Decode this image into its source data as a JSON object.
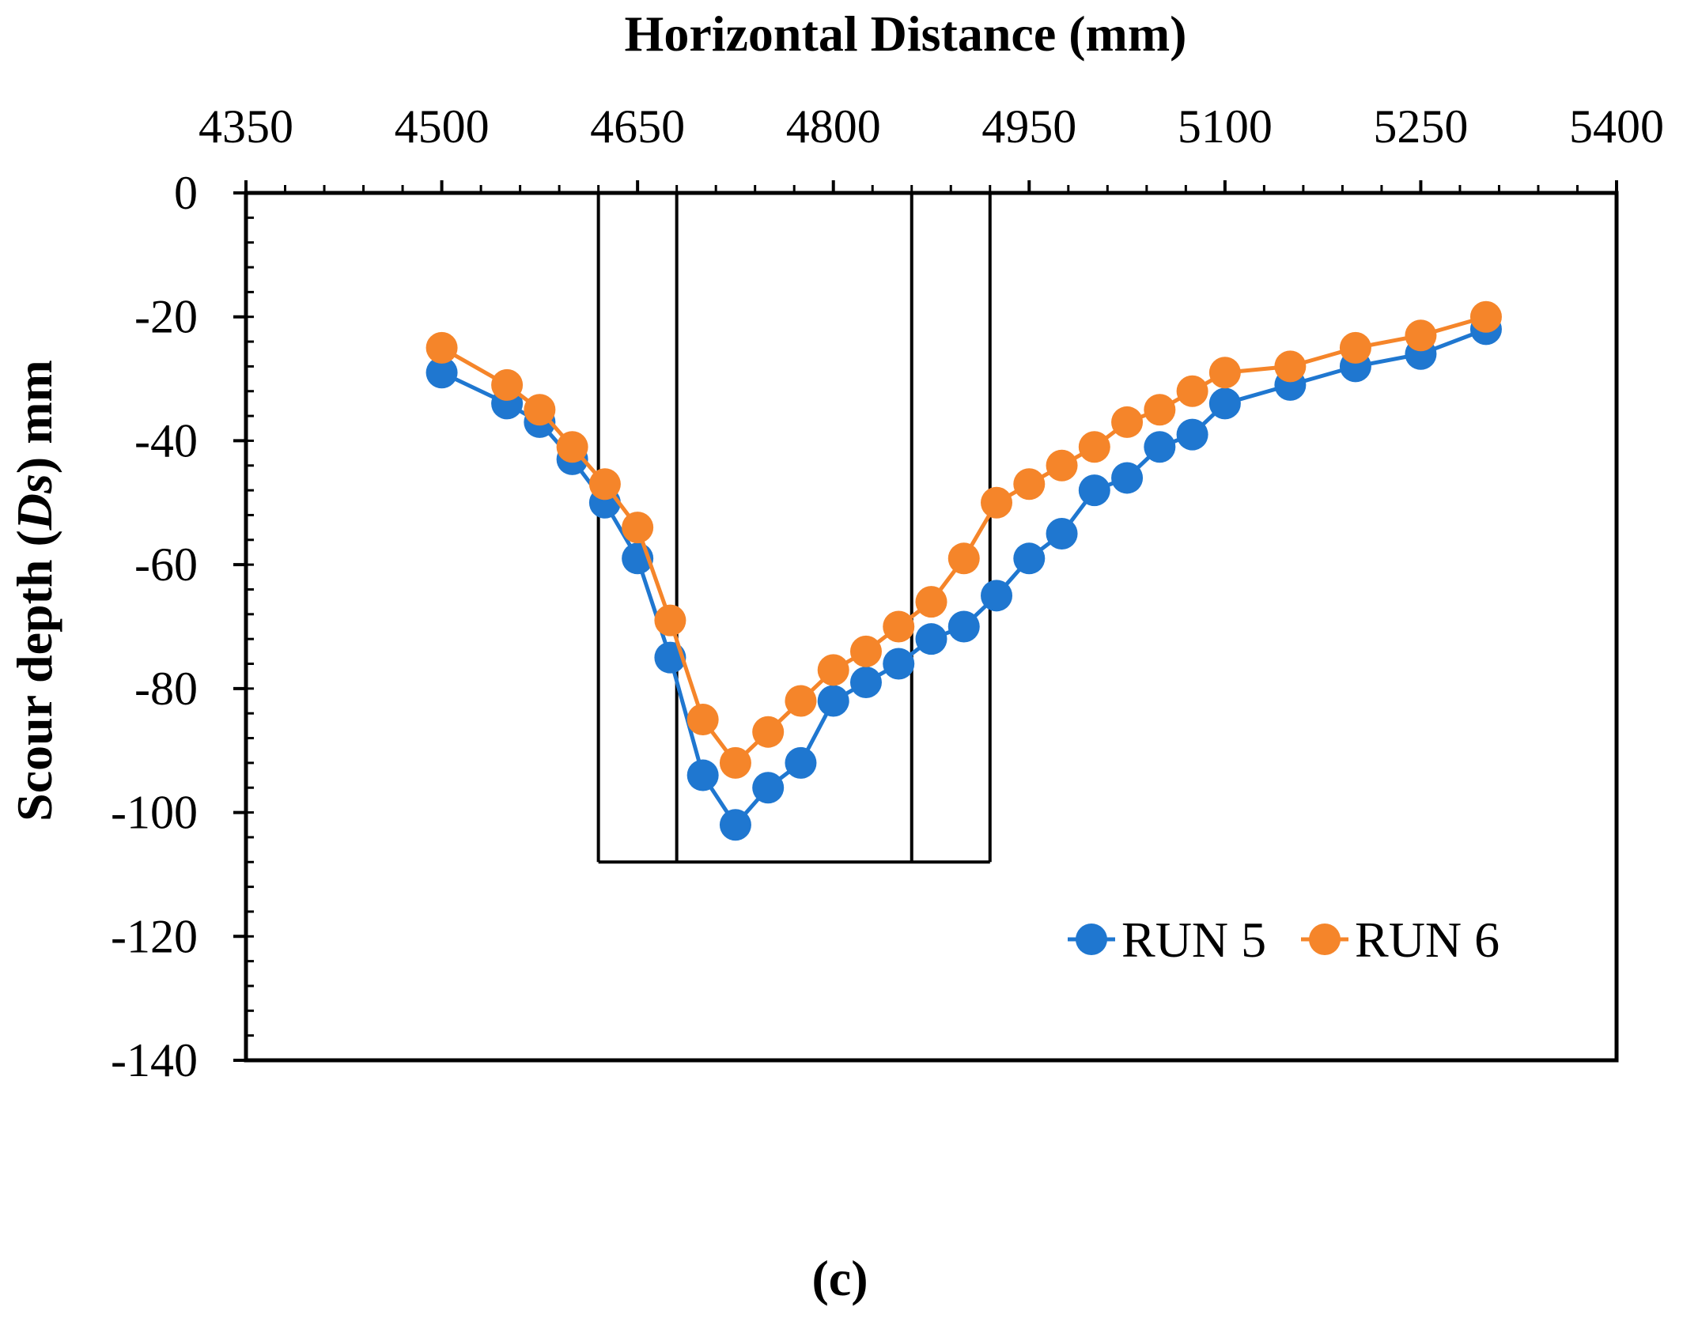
{
  "chart_data": {
    "type": "line",
    "title": "",
    "xlabel": "Horizontal Distance (mm)",
    "ylabel_prefix": "Scour depth (",
    "ylabel_italic": "Ds",
    "ylabel_suffix": ") mm",
    "xlim": [
      4350,
      5400
    ],
    "ylim": [
      -140,
      0
    ],
    "x_ticks": [
      4350,
      4500,
      4650,
      4800,
      4950,
      5100,
      5250,
      5400
    ],
    "x_tick_labels": [
      "4350",
      "4500",
      "4650",
      "4800",
      "4950",
      "5100",
      "5250",
      "5400"
    ],
    "y_ticks": [
      0,
      -20,
      -40,
      -60,
      -80,
      -100,
      -120,
      -140
    ],
    "y_tick_labels": [
      "0",
      "-20",
      "-40",
      "-60",
      "-80",
      "-100",
      "-120",
      "-140"
    ],
    "x_minor_step": 30,
    "y_minor_step": 4,
    "x_axis_position": "top",
    "grid": false,
    "legend_position": "bottom-right",
    "series": [
      {
        "name": "RUN 5",
        "color": "#1f77d0",
        "x": [
          4500,
          4550,
          4575,
          4600,
          4625,
          4650,
          4675,
          4700,
          4725,
          4750,
          4775,
          4800,
          4825,
          4850,
          4875,
          4900,
          4925,
          4950,
          4975,
          5000,
          5025,
          5050,
          5075,
          5100,
          5150,
          5200,
          5250,
          5300
        ],
        "y": [
          -29,
          -34,
          -37,
          -43,
          -50,
          -59,
          -75,
          -94,
          -102,
          -96,
          -92,
          -82,
          -79,
          -76,
          -72,
          -70,
          -65,
          -59,
          -55,
          -48,
          -46,
          -41,
          -39,
          -34,
          -31,
          -28,
          -26,
          -22
        ]
      },
      {
        "name": "RUN 6",
        "color": "#f5852a",
        "x": [
          4500,
          4550,
          4575,
          4600,
          4625,
          4650,
          4675,
          4700,
          4725,
          4750,
          4775,
          4800,
          4825,
          4850,
          4875,
          4900,
          4925,
          4950,
          4975,
          5000,
          5025,
          5050,
          5075,
          5100,
          5150,
          5200,
          5250,
          5300
        ],
        "y": [
          -25,
          -31,
          -35,
          -41,
          -47,
          -54,
          -69,
          -85,
          -92,
          -87,
          -82,
          -77,
          -74,
          -70,
          -66,
          -59,
          -50,
          -47,
          -44,
          -41,
          -37,
          -35,
          -32,
          -29,
          -28,
          -25,
          -23,
          -20
        ]
      }
    ],
    "structure_outline": {
      "outer_x": [
        4620,
        4920
      ],
      "inner_x": [
        4680,
        4860
      ],
      "bottom_y": -108
    },
    "caption": "(c)"
  }
}
